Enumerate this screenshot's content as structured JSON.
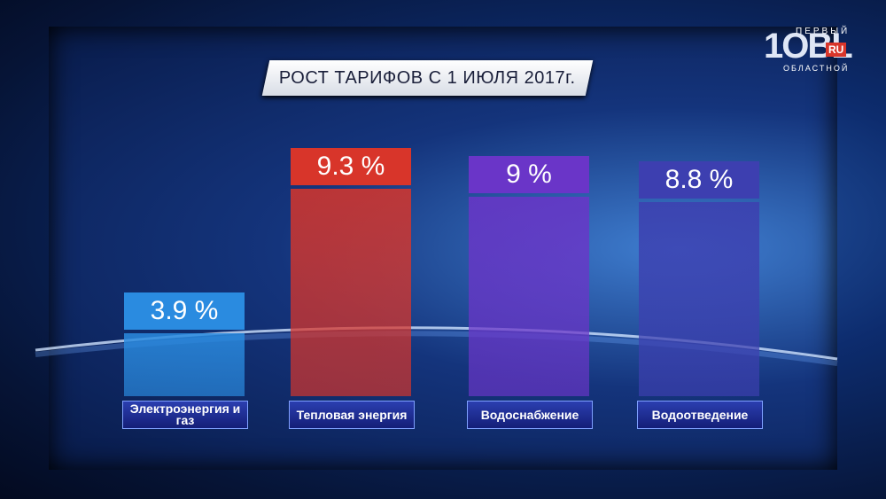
{
  "chart_data": {
    "type": "bar",
    "title": "РОСТ ТАРИФОВ С 1 ИЮЛЯ 2017г.",
    "categories": [
      "Электроэнергия и газ",
      "Тепловая энергия",
      "Водоснабжение",
      "Водоотведение"
    ],
    "values": [
      3.9,
      9.3,
      9,
      8.8
    ],
    "value_labels": [
      "3.9 %",
      "9.3 %",
      "9 %",
      "8.8 %"
    ],
    "colors": [
      "#2a8be0",
      "#d8352a",
      "#6a35c8",
      "#3d3fb0"
    ]
  },
  "logo": {
    "top": "ПЕРВЫЙ",
    "main": "1OBL",
    "ru": "RU",
    "bottom": "ОБЛАСТНОЙ"
  }
}
